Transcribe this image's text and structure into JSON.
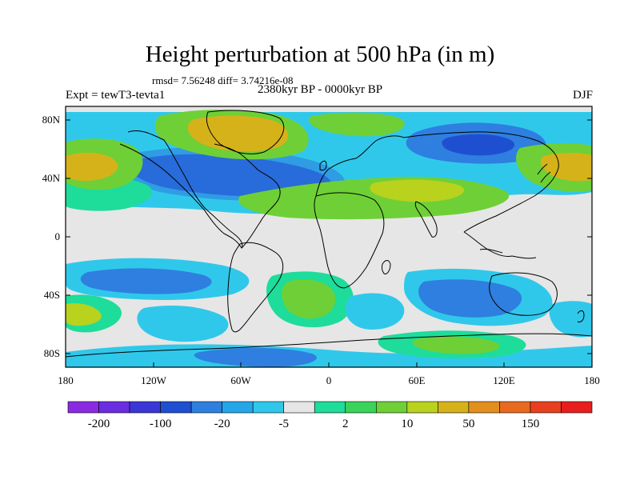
{
  "header": {
    "title": "Height perturbation at 500 hPa (in m)",
    "stats": "rmsd= 7.56248 diff= 3.74216e-08",
    "experiment": "Expt = tewT3-tevta1",
    "period": "2380kyr BP - 0000kyr BP",
    "season": "DJF"
  },
  "map": {
    "projection": "cylindrical-equidistant",
    "lat_labels": [
      "80N",
      "40N",
      "0",
      "40S",
      "80S"
    ],
    "lon_labels": [
      "180",
      "120W",
      "60W",
      "0",
      "60E",
      "120E",
      "180"
    ]
  },
  "colorbar": {
    "colors": [
      "#8a2be2",
      "#6a2ee0",
      "#3b37d6",
      "#1f4fd1",
      "#2e7fe0",
      "#25a6e8",
      "#30c8ea",
      "#e6e6e6",
      "#1edc9a",
      "#3bd45a",
      "#6ed036",
      "#b8d21e",
      "#d6b21a",
      "#e28f1e",
      "#e86a1e",
      "#e8401e",
      "#e81e1e"
    ],
    "labels": [
      "-200",
      "-100",
      "-20",
      "-5",
      "2",
      "10",
      "50",
      "150"
    ]
  }
}
